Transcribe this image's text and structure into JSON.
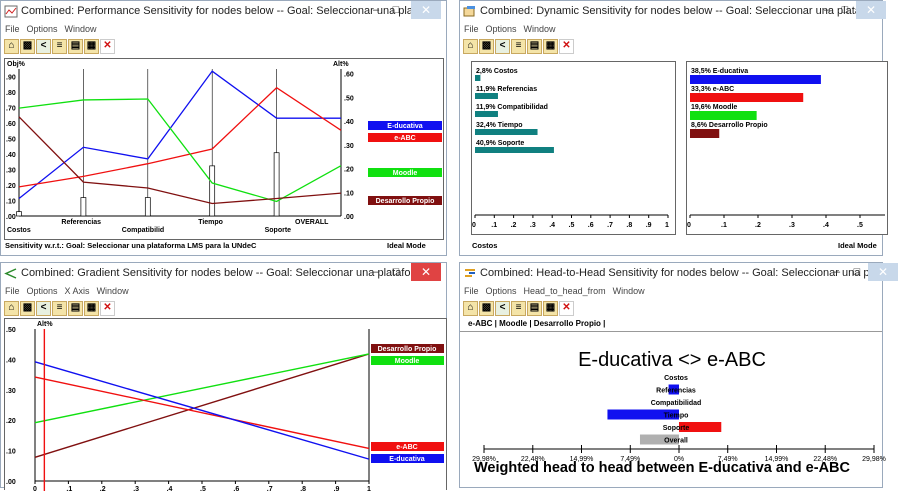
{
  "windows": {
    "performance": {
      "title": "Combined: Performance Sensitivity for nodes below -- Goal: Seleccionar una platafo...",
      "menu": [
        "File",
        "Options",
        "Window"
      ],
      "left_axis_label": "Obj%",
      "right_axis_label": "Alt%",
      "status_left": "Sensitivity w.r.t.: Goal: Seleccionar una plataforma LMS para la UNdeC",
      "status_right": "Ideal Mode"
    },
    "dynamic": {
      "title": "Combined: Dynamic Sensitivity for nodes below -- Goal: Seleccionar una platafor...",
      "menu": [
        "File",
        "Options",
        "Window"
      ],
      "status_left": "Costos",
      "status_right": "Ideal Mode"
    },
    "gradient": {
      "title": "Combined: Gradient Sensitivity for nodes below -- Goal: Seleccionar una platafor...",
      "menu": [
        "File",
        "Options",
        "X Axis",
        "Window"
      ],
      "y_axis_label": "Alt%"
    },
    "head_to_head": {
      "title": "Combined: Head-to-Head Sensitivity for nodes below -- Goal: Seleccionar una pl...",
      "menu": [
        "File",
        "Options",
        "Head_to_head_from",
        "Window"
      ],
      "compare_bar": "e-ABC | Moodle | Desarrollo Propio |",
      "heading": "E-ducativa <> e-ABC",
      "footer": "Weighted head to head between E-ducativa and e-ABC"
    }
  },
  "colors": {
    "educativa": "#1010f0",
    "eabc": "#f01010",
    "moodle": "#10e010",
    "desarrollo": "#801010",
    "teal": "#108080",
    "gray": "#b0b0b0"
  },
  "chart_data": [
    {
      "type": "line",
      "name": "performance",
      "categories": [
        "Costos",
        "Referencias",
        "Compatibilid",
        "Tiempo",
        "Soporte",
        "OVERALL"
      ],
      "objective_bars": [
        0.028,
        0.119,
        0.119,
        0.324,
        0.409
      ],
      "y_ticks": [
        ".00",
        ".10",
        ".20",
        ".30",
        ".40",
        ".50",
        ".60",
        ".70",
        ".80",
        ".90"
      ],
      "right_ticks": [
        ".00",
        ".10",
        ".20",
        ".30",
        ".40",
        ".50",
        ".60"
      ],
      "series": [
        {
          "name": "E-ducativa",
          "color": "#1010f0",
          "values": [
            0.113,
            0.444,
            0.369,
            0.936,
            0.632,
            0.632
          ]
        },
        {
          "name": "e-ABC",
          "color": "#f01010",
          "values": [
            0.188,
            0.256,
            0.338,
            0.433,
            0.829,
            0.554
          ]
        },
        {
          "name": "Moodle",
          "color": "#10e010",
          "values": [
            0.697,
            0.75,
            0.756,
            0.213,
            0.094,
            0.325
          ]
        },
        {
          "name": "Desarrollo Propio",
          "color": "#801010",
          "values": [
            0.641,
            0.219,
            0.181,
            0.081,
            0.113,
            0.148
          ]
        }
      ]
    },
    {
      "type": "bar",
      "name": "dynamic-objectives",
      "labels": [
        "2,8% Costos",
        "11,9% Referencias",
        "11,9% Compatibilidad",
        "32,4% Tiempo",
        "40,9% Soporte"
      ],
      "values": [
        0.028,
        0.119,
        0.119,
        0.324,
        0.409
      ],
      "color": "#108080",
      "x_ticks": [
        "0",
        ".1",
        ".2",
        ".3",
        ".4",
        ".5",
        ".6",
        ".7",
        ".8",
        ".9",
        "1"
      ]
    },
    {
      "type": "bar",
      "name": "dynamic-alternatives",
      "labels": [
        "38,5% E-ducativa",
        "33,3% e-ABC",
        "19,6% Moodle",
        "8,6% Desarrollo Propio"
      ],
      "values": [
        0.385,
        0.333,
        0.196,
        0.086
      ],
      "colors": [
        "#1010f0",
        "#f01010",
        "#10e010",
        "#801010"
      ],
      "x_ticks": [
        "0",
        ".1",
        ".2",
        ".3",
        ".4",
        ".5"
      ]
    },
    {
      "type": "line",
      "name": "gradient",
      "xlim": [
        0,
        1
      ],
      "ylim": [
        0,
        0.5
      ],
      "x_ticks": [
        "0",
        ".1",
        ".2",
        ".3",
        ".4",
        ".5",
        ".6",
        ".7",
        ".8",
        ".9",
        "1"
      ],
      "y_ticks": [
        ".00",
        ".10",
        ".20",
        ".30",
        ".40",
        ".50"
      ],
      "current_x": 0.028,
      "series": [
        {
          "name": "Desarrollo Propio",
          "color": "#801010",
          "values": [
            0.078,
            0.418
          ]
        },
        {
          "name": "Moodle",
          "color": "#10e010",
          "values": [
            0.192,
            0.418
          ]
        },
        {
          "name": "e-ABC",
          "color": "#f01010",
          "values": [
            0.342,
            0.107
          ]
        },
        {
          "name": "E-ducativa",
          "color": "#1010f0",
          "values": [
            0.392,
            0.072
          ]
        }
      ]
    },
    {
      "type": "bar",
      "name": "head-to-head",
      "categories": [
        "Costos",
        "Referencias",
        "Compatibilidad",
        "Tiempo",
        "Soporte",
        "Overall"
      ],
      "values": [
        0.0,
        -1.6,
        0.0,
        -11.0,
        6.5,
        -6.0
      ],
      "x_ticks": [
        "29,98%",
        "22,48%",
        "14,99%",
        "7,49%",
        "0%",
        "7,49%",
        "14,99%",
        "22,48%",
        "29,98%"
      ],
      "xlim": [
        -29.98,
        29.98
      ]
    }
  ]
}
